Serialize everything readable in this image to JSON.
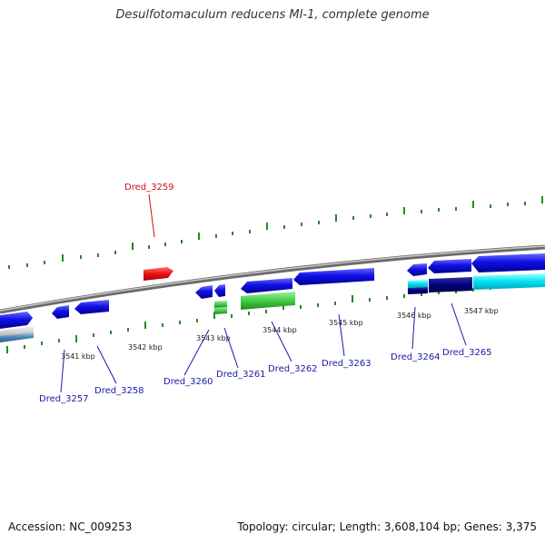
{
  "title": "Desulfotomaculum reducens MI-1, complete genome",
  "footer": {
    "accession": "Accession: NC_009253",
    "topology": "Topology: circular; Length: 3,608,104 bp; Genes: 3,375"
  },
  "colors": {
    "backbone": "#8a8a8a",
    "ticks": "#228b22",
    "label_blue": "#1a1aa8",
    "label_red": "#d01010",
    "gene_blue": "#1010e0",
    "gene_red": "#ee1111",
    "gene_green": "#44cc44",
    "gene_cyan": "#00e0f0",
    "gene_navy": "#000080"
  },
  "kbp_labels": [
    "3541 kbp",
    "3542 kbp",
    "3543 kbp",
    "3544 kbp",
    "3545 kbp",
    "3546 kbp",
    "3547 kbp"
  ],
  "gene_labels": [
    {
      "text": "Dred_3257",
      "color": "blue"
    },
    {
      "text": "Dred_3258",
      "color": "blue"
    },
    {
      "text": "Dred_3259",
      "color": "red"
    },
    {
      "text": "Dred_3260",
      "color": "blue"
    },
    {
      "text": "Dred_3261",
      "color": "blue"
    },
    {
      "text": "Dred_3262",
      "color": "blue"
    },
    {
      "text": "Dred_3263",
      "color": "blue"
    },
    {
      "text": "Dred_3264",
      "color": "blue"
    },
    {
      "text": "Dred_3265",
      "color": "blue"
    }
  ]
}
